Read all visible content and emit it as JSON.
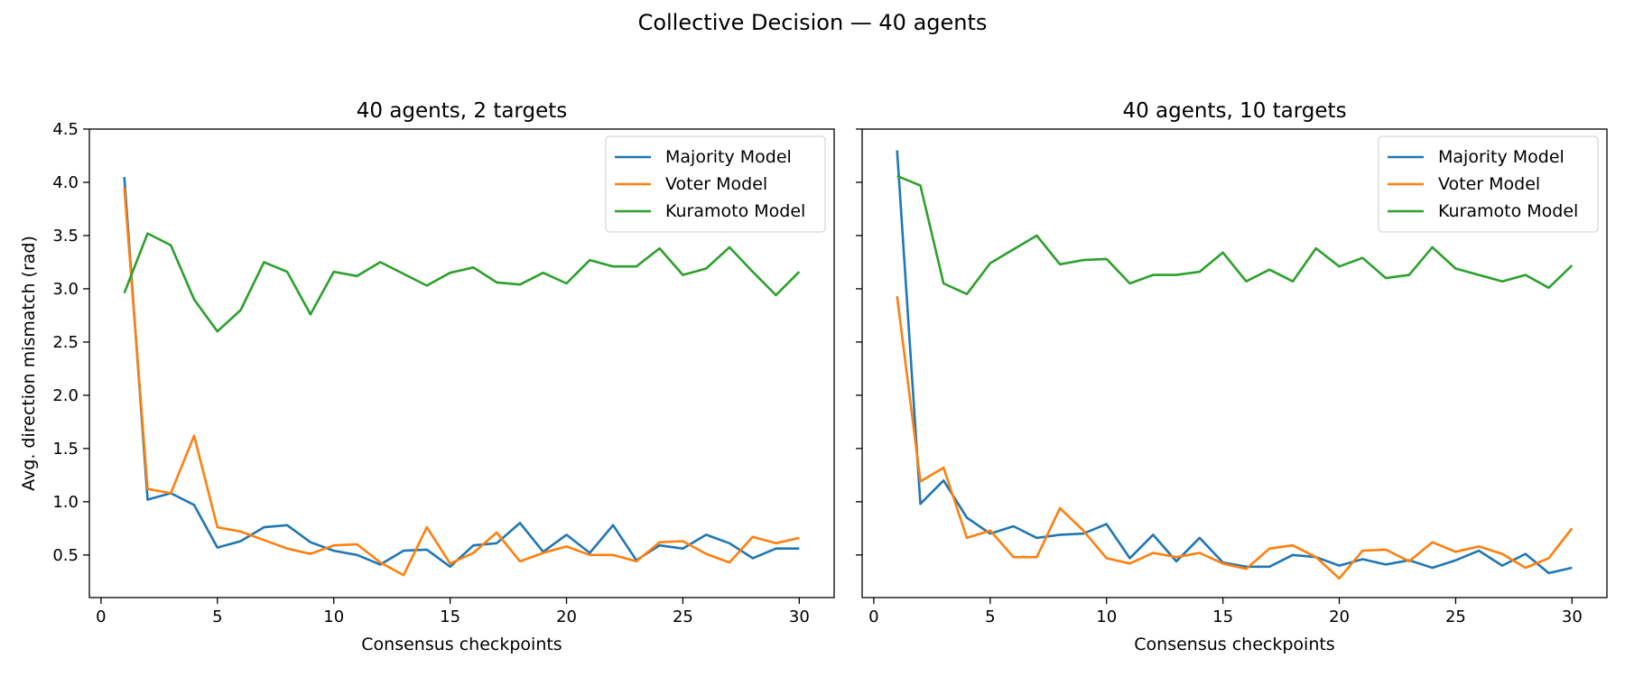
{
  "figure": {
    "suptitle": "Collective Decision — 40 agents"
  },
  "colors": {
    "Majority Model": "#1f77b4",
    "Voter Model": "#ff7f0e",
    "Kuramoto Model": "#2ca02c"
  },
  "chart_data": [
    {
      "type": "line",
      "title": "40 agents, 2 targets",
      "xlabel": "Consensus checkpoints",
      "ylabel": "Avg. direction mismatch (rad)",
      "xlim": [
        -0.5,
        31.5
      ],
      "ylim": [
        0.1,
        4.5
      ],
      "xticks": [
        0,
        5,
        10,
        15,
        20,
        25,
        30
      ],
      "yticks": [
        0.5,
        1.0,
        1.5,
        2.0,
        2.5,
        3.0,
        3.5,
        4.0,
        4.5
      ],
      "legend": "top-right",
      "x": [
        1,
        2,
        3,
        4,
        5,
        6,
        7,
        8,
        9,
        10,
        11,
        12,
        13,
        14,
        15,
        16,
        17,
        18,
        19,
        20,
        21,
        22,
        23,
        24,
        25,
        26,
        27,
        28,
        29,
        30
      ],
      "series": [
        {
          "name": "Majority Model",
          "values": [
            4.05,
            1.02,
            1.08,
            0.97,
            0.57,
            0.63,
            0.76,
            0.78,
            0.62,
            0.54,
            0.5,
            0.41,
            0.54,
            0.55,
            0.39,
            0.59,
            0.61,
            0.8,
            0.53,
            0.69,
            0.52,
            0.78,
            0.45,
            0.59,
            0.56,
            0.69,
            0.61,
            0.47,
            0.56,
            0.56
          ]
        },
        {
          "name": "Voter Model",
          "values": [
            3.95,
            1.12,
            1.08,
            1.62,
            0.76,
            0.72,
            0.64,
            0.56,
            0.51,
            0.59,
            0.6,
            0.43,
            0.31,
            0.76,
            0.42,
            0.52,
            0.71,
            0.44,
            0.52,
            0.58,
            0.5,
            0.5,
            0.44,
            0.62,
            0.63,
            0.51,
            0.43,
            0.67,
            0.61,
            0.66
          ]
        },
        {
          "name": "Kuramoto Model",
          "values": [
            2.96,
            3.52,
            3.41,
            2.9,
            2.6,
            2.8,
            3.25,
            3.16,
            2.76,
            3.16,
            3.12,
            3.25,
            3.14,
            3.03,
            3.15,
            3.2,
            3.06,
            3.04,
            3.15,
            3.05,
            3.27,
            3.21,
            3.21,
            3.38,
            3.13,
            3.19,
            3.39,
            3.16,
            2.94,
            3.16
          ]
        }
      ]
    },
    {
      "type": "line",
      "title": "40 agents, 10 targets",
      "xlabel": "Consensus checkpoints",
      "ylabel": "",
      "xlim": [
        -0.5,
        31.5
      ],
      "ylim": [
        0.1,
        4.5
      ],
      "xticks": [
        0,
        5,
        10,
        15,
        20,
        25,
        30
      ],
      "yticks": [
        0.5,
        1.0,
        1.5,
        2.0,
        2.5,
        3.0,
        3.5,
        4.0,
        4.5
      ],
      "legend": "top-right",
      "x": [
        1,
        2,
        3,
        4,
        5,
        6,
        7,
        8,
        9,
        10,
        11,
        12,
        13,
        14,
        15,
        16,
        17,
        18,
        19,
        20,
        21,
        22,
        23,
        24,
        25,
        26,
        27,
        28,
        29,
        30
      ],
      "series": [
        {
          "name": "Majority Model",
          "values": [
            4.3,
            0.98,
            1.2,
            0.85,
            0.7,
            0.77,
            0.66,
            0.69,
            0.7,
            0.79,
            0.47,
            0.69,
            0.44,
            0.66,
            0.43,
            0.39,
            0.39,
            0.5,
            0.48,
            0.4,
            0.46,
            0.41,
            0.45,
            0.38,
            0.45,
            0.54,
            0.4,
            0.51,
            0.33,
            0.38
          ]
        },
        {
          "name": "Voter Model",
          "values": [
            2.93,
            1.19,
            1.32,
            0.66,
            0.73,
            0.48,
            0.48,
            0.94,
            0.73,
            0.47,
            0.42,
            0.52,
            0.48,
            0.52,
            0.42,
            0.37,
            0.56,
            0.59,
            0.48,
            0.28,
            0.54,
            0.55,
            0.44,
            0.62,
            0.53,
            0.58,
            0.51,
            0.38,
            0.47,
            0.75
          ]
        },
        {
          "name": "Kuramoto Model",
          "values": [
            4.06,
            3.97,
            3.05,
            2.95,
            3.24,
            3.37,
            3.5,
            3.23,
            3.27,
            3.28,
            3.05,
            3.13,
            3.13,
            3.16,
            3.34,
            3.07,
            3.18,
            3.07,
            3.38,
            3.21,
            3.29,
            3.1,
            3.13,
            3.39,
            3.19,
            3.13,
            3.07,
            3.13,
            3.01,
            3.22
          ]
        }
      ]
    }
  ]
}
